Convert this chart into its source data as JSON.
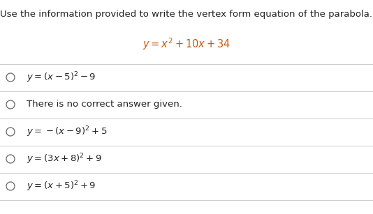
{
  "title": "Use the information provided to write the vertex form equation of the parabola.",
  "equation": "$y = x^2 +10x+ 34$",
  "equation_color": "#c55a11",
  "options": [
    "$y = (x-5)^2 - 9$",
    "There is no correct answer given.",
    "$y = -(x-9)^2 +5$",
    "$y = (3x+8)^2 +9$",
    "$y = (x+5)^2 +9$"
  ],
  "background_color": "#ffffff",
  "text_color": "#222222",
  "title_fontsize": 9.5,
  "option_fontsize": 9.5,
  "eq_fontsize": 10.5,
  "line_color": "#cccccc",
  "circle_color": "#666666"
}
